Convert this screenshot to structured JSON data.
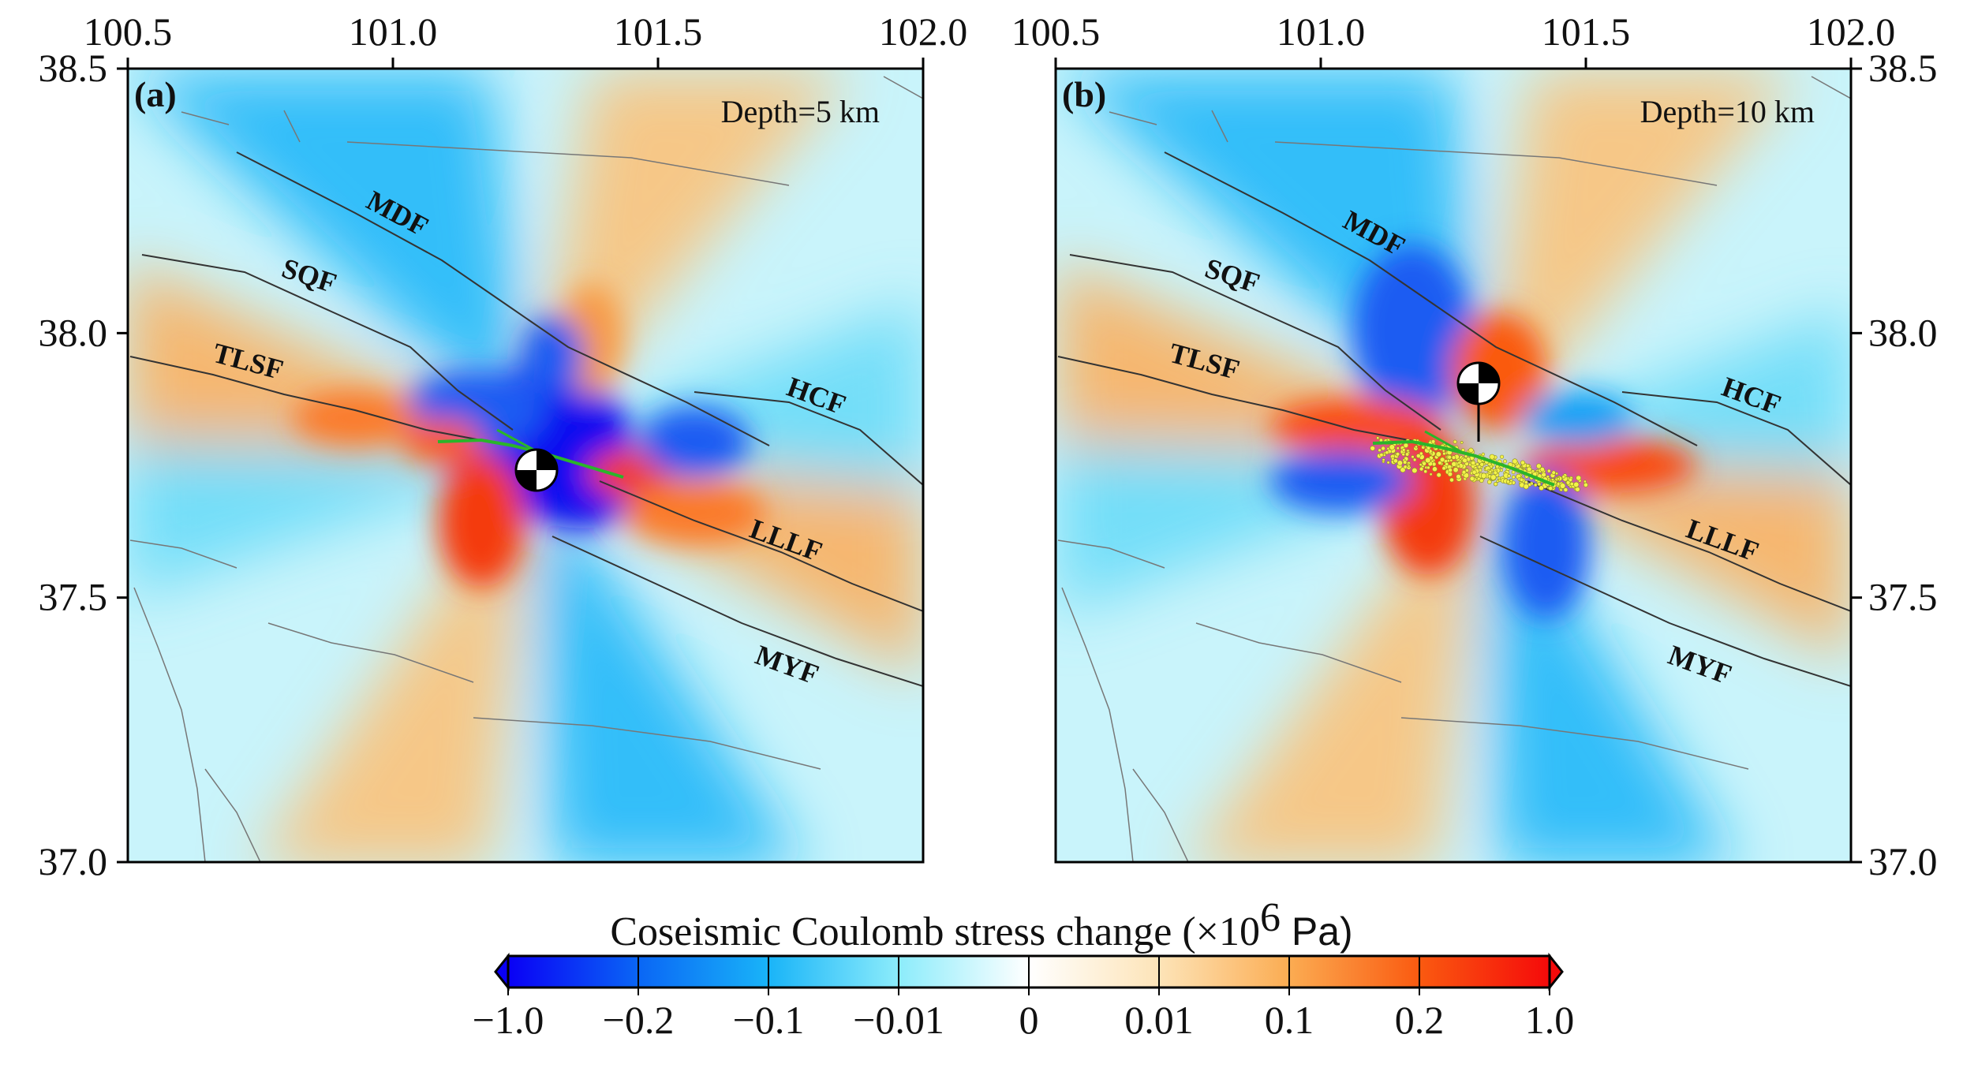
{
  "figure": {
    "colorbar": {
      "title": "Coseismic Coulomb stress change (×10",
      "title_exponent": "6",
      "title_unit": " Pa)",
      "ticks": [
        "−1.0",
        "−0.2",
        "−0.1",
        "−0.01",
        "0",
        "0.01",
        "0.1",
        "0.2",
        "1.0"
      ],
      "colors": [
        "#0a00f5",
        "#0a66f5",
        "#19b4f8",
        "#8cecfb",
        "#ffffff",
        "#fde4b8",
        "#fbac52",
        "#fa5a10",
        "#f50a0a"
      ]
    },
    "lon_ticks": [
      "100.5",
      "101.0",
      "101.5",
      "102.0"
    ],
    "lat_ticks": [
      "38.5",
      "38.0",
      "37.5",
      "37.0"
    ],
    "lon_range": [
      100.5,
      102.0
    ],
    "lat_range": [
      37.0,
      38.5
    ],
    "panels": [
      {
        "label": "(a)",
        "depth": "Depth=5 km",
        "faults": [
          {
            "name": "MDF",
            "lon": 101.08,
            "lat": 38.22
          },
          {
            "name": "SQF",
            "lon": 100.83,
            "lat": 38.08
          },
          {
            "name": "TLSF",
            "lon": 100.68,
            "lat": 37.93
          },
          {
            "name": "HCF",
            "lon": 101.77,
            "lat": 37.86
          },
          {
            "name": "LLLF",
            "lon": 101.73,
            "lat": 37.58
          },
          {
            "name": "MYF",
            "lon": 101.72,
            "lat": 37.35
          }
        ],
        "epicenter": {
          "lon": 101.27,
          "lat": 37.75
        },
        "aftershocks": false
      },
      {
        "label": "(b)",
        "depth": "Depth=10 km",
        "faults": [
          {
            "name": "MDF",
            "lon": 101.08,
            "lat": 38.22
          },
          {
            "name": "SQF",
            "lon": 100.83,
            "lat": 38.08
          },
          {
            "name": "TLSF",
            "lon": 100.68,
            "lat": 37.93
          },
          {
            "name": "HCF",
            "lon": 101.77,
            "lat": 37.86
          },
          {
            "name": "LLLF",
            "lon": 101.73,
            "lat": 37.58
          },
          {
            "name": "MYF",
            "lon": 101.72,
            "lat": 37.35
          }
        ],
        "epicenter": {
          "lon": 101.29,
          "lat": 37.89
        },
        "aftershocks": true
      }
    ]
  }
}
